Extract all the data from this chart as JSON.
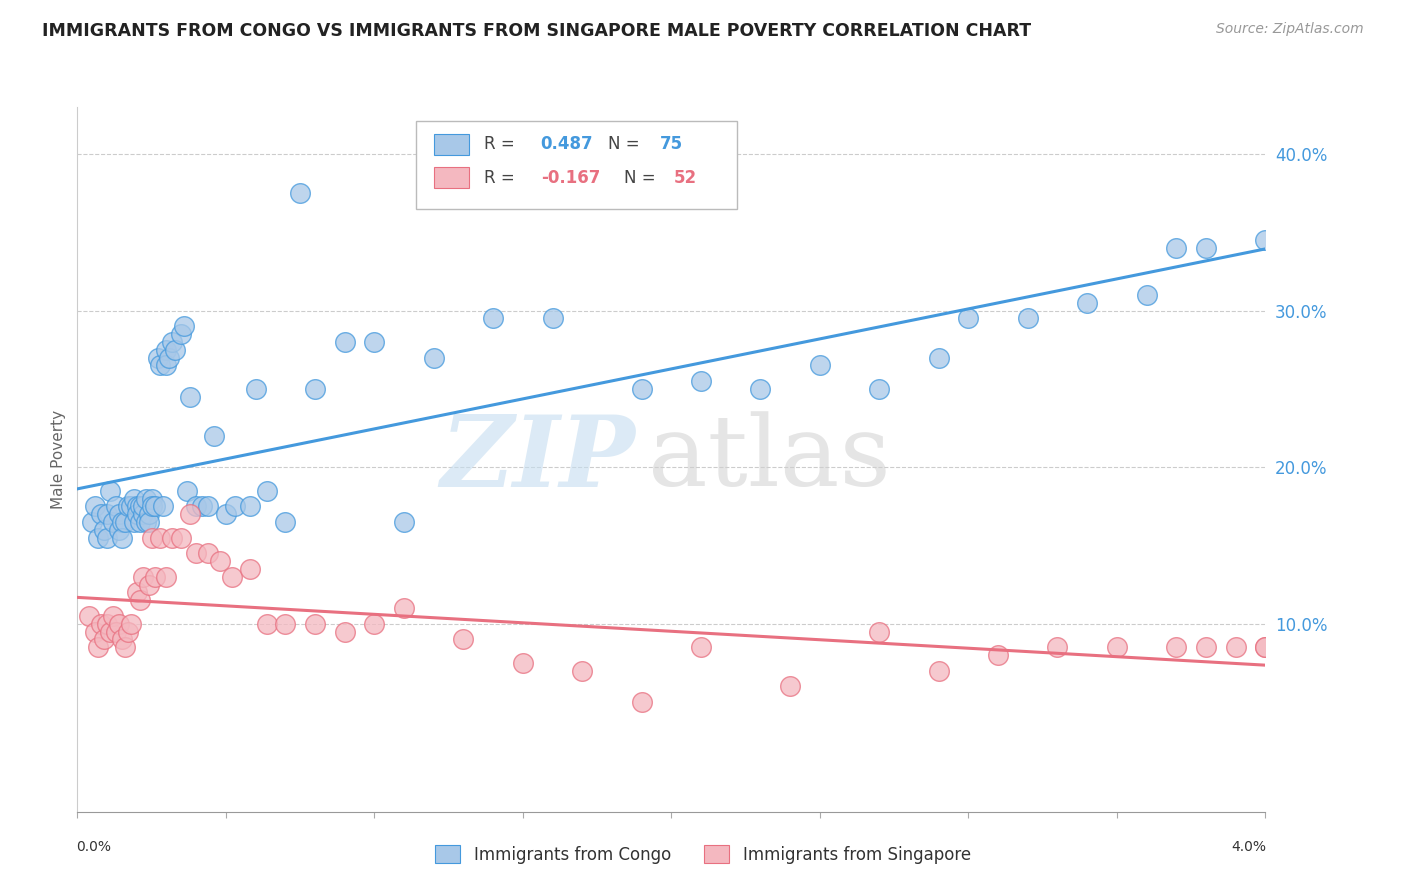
{
  "title": "IMMIGRANTS FROM CONGO VS IMMIGRANTS FROM SINGAPORE MALE POVERTY CORRELATION CHART",
  "source": "Source: ZipAtlas.com",
  "ylabel": "Male Poverty",
  "congo_R": 0.487,
  "congo_N": 75,
  "singapore_R": -0.167,
  "singapore_N": 52,
  "congo_color": "#a8c8e8",
  "singapore_color": "#f4b8c0",
  "congo_line_color": "#4499dd",
  "singapore_line_color": "#e87080",
  "xlim": [
    0.0,
    0.04
  ],
  "ylim": [
    -0.02,
    0.43
  ],
  "yticks": [
    0.1,
    0.2,
    0.3,
    0.4
  ],
  "ytick_labels": [
    "10.0%",
    "20.0%",
    "30.0%",
    "40.0%"
  ],
  "congo_x": [
    0.0005,
    0.0006,
    0.0007,
    0.0008,
    0.0009,
    0.001,
    0.001,
    0.0011,
    0.0012,
    0.0013,
    0.0014,
    0.0014,
    0.0015,
    0.0015,
    0.0016,
    0.0017,
    0.0018,
    0.0019,
    0.0019,
    0.002,
    0.002,
    0.0021,
    0.0021,
    0.0022,
    0.0022,
    0.0023,
    0.0023,
    0.0024,
    0.0024,
    0.0025,
    0.0025,
    0.0026,
    0.0027,
    0.0028,
    0.0029,
    0.003,
    0.003,
    0.0031,
    0.0032,
    0.0033,
    0.0035,
    0.0036,
    0.0037,
    0.0038,
    0.004,
    0.0042,
    0.0044,
    0.0046,
    0.005,
    0.0053,
    0.0058,
    0.006,
    0.0064,
    0.007,
    0.0075,
    0.008,
    0.009,
    0.01,
    0.011,
    0.012,
    0.014,
    0.016,
    0.019,
    0.021,
    0.023,
    0.025,
    0.027,
    0.029,
    0.03,
    0.032,
    0.034,
    0.036,
    0.037,
    0.038,
    0.04
  ],
  "congo_y": [
    0.165,
    0.175,
    0.155,
    0.17,
    0.16,
    0.17,
    0.155,
    0.185,
    0.165,
    0.175,
    0.16,
    0.17,
    0.165,
    0.155,
    0.165,
    0.175,
    0.175,
    0.18,
    0.165,
    0.175,
    0.17,
    0.175,
    0.165,
    0.17,
    0.175,
    0.165,
    0.18,
    0.17,
    0.165,
    0.18,
    0.175,
    0.175,
    0.27,
    0.265,
    0.175,
    0.275,
    0.265,
    0.27,
    0.28,
    0.275,
    0.285,
    0.29,
    0.185,
    0.245,
    0.175,
    0.175,
    0.175,
    0.22,
    0.17,
    0.175,
    0.175,
    0.25,
    0.185,
    0.165,
    0.375,
    0.25,
    0.28,
    0.28,
    0.165,
    0.27,
    0.295,
    0.295,
    0.25,
    0.255,
    0.25,
    0.265,
    0.25,
    0.27,
    0.295,
    0.295,
    0.305,
    0.31,
    0.34,
    0.34,
    0.345
  ],
  "singapore_x": [
    0.0004,
    0.0006,
    0.0007,
    0.0008,
    0.0009,
    0.001,
    0.0011,
    0.0012,
    0.0013,
    0.0014,
    0.0015,
    0.0016,
    0.0017,
    0.0018,
    0.002,
    0.0021,
    0.0022,
    0.0024,
    0.0025,
    0.0026,
    0.0028,
    0.003,
    0.0032,
    0.0035,
    0.0038,
    0.004,
    0.0044,
    0.0048,
    0.0052,
    0.0058,
    0.0064,
    0.007,
    0.008,
    0.009,
    0.01,
    0.011,
    0.013,
    0.015,
    0.017,
    0.019,
    0.021,
    0.024,
    0.027,
    0.029,
    0.031,
    0.033,
    0.035,
    0.037,
    0.038,
    0.039,
    0.04,
    0.04
  ],
  "singapore_y": [
    0.105,
    0.095,
    0.085,
    0.1,
    0.09,
    0.1,
    0.095,
    0.105,
    0.095,
    0.1,
    0.09,
    0.085,
    0.095,
    0.1,
    0.12,
    0.115,
    0.13,
    0.125,
    0.155,
    0.13,
    0.155,
    0.13,
    0.155,
    0.155,
    0.17,
    0.145,
    0.145,
    0.14,
    0.13,
    0.135,
    0.1,
    0.1,
    0.1,
    0.095,
    0.1,
    0.11,
    0.09,
    0.075,
    0.07,
    0.05,
    0.085,
    0.06,
    0.095,
    0.07,
    0.08,
    0.085,
    0.085,
    0.085,
    0.085,
    0.085,
    0.085,
    0.085
  ]
}
